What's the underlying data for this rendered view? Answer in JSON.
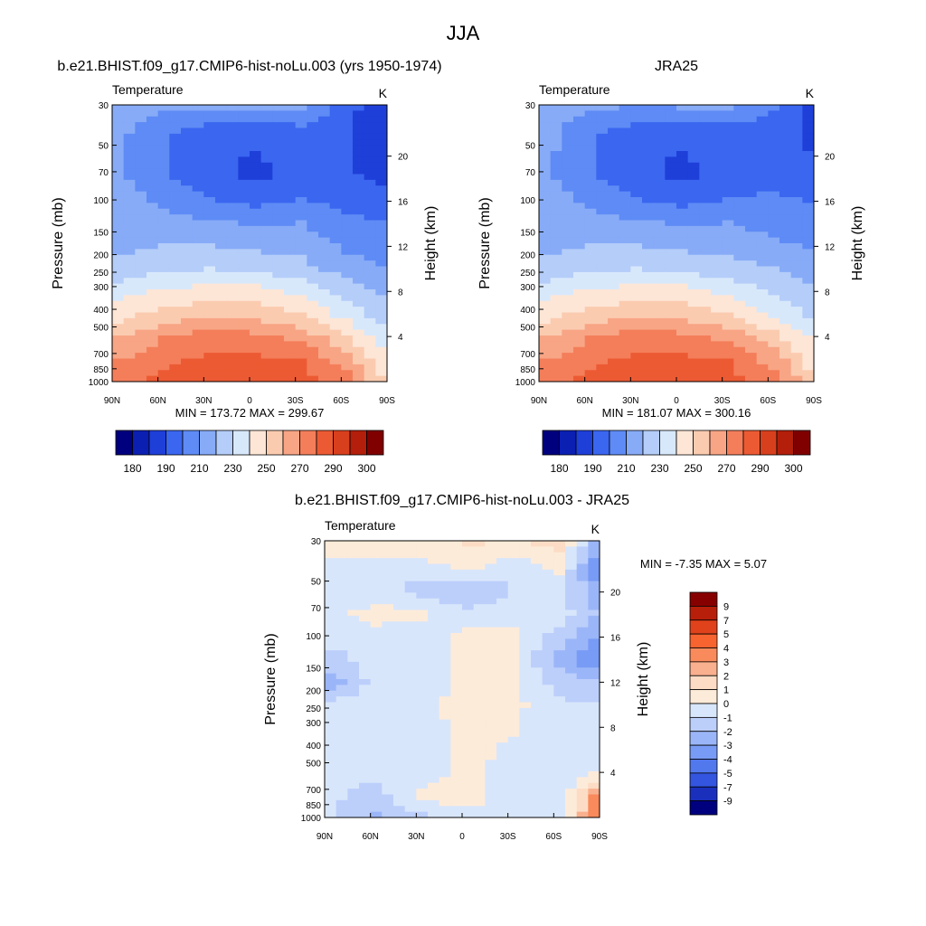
{
  "figure_title": "JJA",
  "panels": [
    {
      "title": "b.e21.BHIST.f09_g17.CMIP6-hist-noLu.003 (yrs 1950-1974)",
      "left_label": "Temperature",
      "right_label": "K",
      "ylabel": "Pressure (mb)",
      "y2label": "Height (km)",
      "minmax": "MIN = 173.72  MAX = 299.67",
      "colorbar_labels": [
        "180",
        "190",
        "210",
        "230",
        "250",
        "270",
        "290",
        "300"
      ]
    },
    {
      "title": "JRA25",
      "left_label": "Temperature",
      "right_label": "K",
      "ylabel": "Pressure (mb)",
      "y2label": "Height (km)",
      "minmax": "MIN = 181.07  MAX = 300.16",
      "colorbar_labels": [
        "180",
        "190",
        "210",
        "230",
        "250",
        "270",
        "290",
        "300"
      ]
    },
    {
      "title": "b.e21.BHIST.f09_g17.CMIP6-hist-noLu.003 - JRA25",
      "left_label": "Temperature",
      "right_label": "K",
      "ylabel": "Pressure (mb)",
      "y2label": "Height (km)",
      "minmax": "MIN =  -7.35  MAX =   5.07",
      "colorbar_labels": [
        "9",
        "7",
        "5",
        "4",
        "3",
        "2",
        "1",
        "0",
        "-1",
        "-2",
        "-3",
        "-4",
        "-5",
        "-7",
        "-9"
      ]
    }
  ],
  "x_ticks": [
    "90N",
    "60N",
    "30N",
    "0",
    "30S",
    "60S",
    "90S"
  ],
  "pressure_ticks": [
    "30",
    "50",
    "70",
    "100",
    "150",
    "200",
    "250",
    "300",
    "400",
    "500",
    "700",
    "850",
    "1000"
  ],
  "height_ticks": [
    "20",
    "16",
    "12",
    "8",
    "4"
  ],
  "colors": {
    "temp_scale": [
      "#00007f",
      "#0b1fb2",
      "#1f3fd9",
      "#3a66f0",
      "#5e8bf5",
      "#87abf7",
      "#b4cdf9",
      "#d8e8fb",
      "#fde6d6",
      "#fbcbb0",
      "#f8a585",
      "#f47e5a",
      "#ec5a33",
      "#d8401d",
      "#b31f0a",
      "#800000"
    ],
    "diff_scale": [
      "#870000",
      "#b81f0a",
      "#e0421b",
      "#f7642f",
      "#f98a5b",
      "#f9b08e",
      "#fcdcc4",
      "#fdebd9",
      "#d8e6fb",
      "#bccffb",
      "#9bb6f8",
      "#789bf5",
      "#5278ee",
      "#3355e0",
      "#1a30bd",
      "#00007f"
    ]
  },
  "chart_data": [
    {
      "type": "contour",
      "title": "b.e21.BHIST.f09_g17.CMIP6-hist-noLu.003 (yrs 1950-1974)",
      "variable": "Temperature",
      "units": "K",
      "x": [
        "90N",
        "60N",
        "30N",
        "0",
        "30S",
        "60S",
        "90S"
      ],
      "y_pressure_mb": [
        30,
        50,
        70,
        100,
        150,
        200,
        250,
        300,
        400,
        500,
        700,
        850,
        1000
      ],
      "y2_height_km": [
        4,
        8,
        12,
        16,
        20
      ],
      "levels": [
        180,
        190,
        200,
        210,
        220,
        230,
        240,
        250,
        260,
        270,
        280,
        290,
        300
      ],
      "min": 173.72,
      "max": 299.67,
      "field": [
        [
          225,
          222,
          220,
          220,
          220,
          205,
          185
        ],
        [
          223,
          212,
          205,
          203,
          207,
          200,
          188
        ],
        [
          222,
          210,
          203,
          199,
          204,
          200,
          192
        ],
        [
          222,
          212,
          202,
          198,
          204,
          202,
          196
        ],
        [
          224,
          218,
          210,
          206,
          210,
          206,
          204
        ],
        [
          226,
          224,
          221,
          219,
          220,
          213,
          210
        ],
        [
          228,
          230,
          230,
          228,
          226,
          218,
          215
        ],
        [
          232,
          238,
          240,
          238,
          234,
          225,
          219
        ],
        [
          246,
          252,
          255,
          254,
          248,
          236,
          226
        ],
        [
          256,
          264,
          268,
          266,
          260,
          246,
          232
        ],
        [
          270,
          280,
          286,
          284,
          278,
          262,
          242
        ],
        [
          280,
          288,
          292,
          292,
          290,
          274,
          250
        ],
        [
          286,
          294,
          299,
          298,
          294,
          286,
          255
        ]
      ]
    },
    {
      "type": "contour",
      "title": "JRA25",
      "variable": "Temperature",
      "units": "K",
      "x": [
        "90N",
        "60N",
        "30N",
        "0",
        "30S",
        "60S",
        "90S"
      ],
      "y_pressure_mb": [
        30,
        50,
        70,
        100,
        150,
        200,
        250,
        300,
        400,
        500,
        700,
        850,
        1000
      ],
      "y2_height_km": [
        4,
        8,
        12,
        16,
        20
      ],
      "levels": [
        180,
        190,
        200,
        210,
        220,
        230,
        240,
        250,
        260,
        270,
        280,
        290,
        300
      ],
      "min": 181.07,
      "max": 300.16,
      "field": [
        [
          226,
          222,
          219,
          220,
          220,
          210,
          190
        ],
        [
          224,
          212,
          205,
          203,
          206,
          205,
          195
        ],
        [
          223,
          210,
          203,
          199,
          204,
          206,
          198
        ],
        [
          222,
          212,
          202,
          198,
          204,
          207,
          202
        ],
        [
          224,
          218,
          210,
          206,
          210,
          212,
          208
        ],
        [
          226,
          224,
          221,
          219,
          220,
          216,
          213
        ],
        [
          228,
          230,
          230,
          228,
          226,
          222,
          218
        ],
        [
          232,
          238,
          240,
          238,
          234,
          230,
          222
        ],
        [
          246,
          252,
          255,
          254,
          248,
          238,
          230
        ],
        [
          256,
          264,
          268,
          266,
          260,
          248,
          236
        ],
        [
          270,
          280,
          286,
          284,
          278,
          264,
          246
        ],
        [
          280,
          288,
          292,
          292,
          290,
          276,
          252
        ],
        [
          286,
          294,
          300,
          299,
          294,
          287,
          258
        ]
      ]
    },
    {
      "type": "contour",
      "title": "b.e21.BHIST.f09_g17.CMIP6-hist-noLu.003 - JRA25",
      "variable": "Temperature",
      "units": "K",
      "x": [
        "90N",
        "60N",
        "30N",
        "0",
        "30S",
        "60S",
        "90S"
      ],
      "y_pressure_mb": [
        30,
        50,
        70,
        100,
        150,
        200,
        250,
        300,
        400,
        500,
        700,
        850,
        1000
      ],
      "y2_height_km": [
        4,
        8,
        12,
        16,
        20
      ],
      "levels": [
        -9,
        -7,
        -5,
        -4,
        -3,
        -2,
        -1,
        0,
        1,
        2,
        3,
        4,
        5,
        7,
        9
      ],
      "min": -7.35,
      "max": 5.07,
      "field": [
        [
          0.5,
          0.5,
          0.4,
          1.2,
          0.5,
          1.5,
          -3.5
        ],
        [
          -0.2,
          -0.5,
          -0.3,
          0.2,
          -0.5,
          0.2,
          -4.5
        ],
        [
          -0.4,
          -0.5,
          -1.5,
          -2.0,
          -1.0,
          -0.3,
          -3.5
        ],
        [
          -0.3,
          0.3,
          0.2,
          -0.8,
          -0.3,
          -0.5,
          -2.5
        ],
        [
          -0.5,
          -0.3,
          -0.6,
          0.3,
          0.2,
          -1.5,
          -3.5
        ],
        [
          -1.5,
          -0.5,
          -0.7,
          0.3,
          0.2,
          -2.5,
          -4.5
        ],
        [
          -2.5,
          -0.6,
          -0.6,
          0.4,
          0.2,
          -1.5,
          -2.0
        ],
        [
          -0.6,
          -0.4,
          -0.3,
          0.4,
          0.3,
          -0.8,
          -0.8
        ],
        [
          -0.5,
          -0.5,
          -0.4,
          0.3,
          0.1,
          -0.6,
          -0.6
        ],
        [
          -0.6,
          -0.5,
          -0.4,
          0.3,
          -0.2,
          -0.7,
          -0.6
        ],
        [
          -0.5,
          -0.8,
          -0.5,
          0.3,
          -0.5,
          -1.0,
          0.5
        ],
        [
          -0.8,
          -1.5,
          0.3,
          0.4,
          -0.5,
          -0.8,
          4.5
        ],
        [
          -1.0,
          -2.5,
          -1.5,
          -0.5,
          -0.5,
          -0.8,
          5.0
        ]
      ]
    }
  ]
}
